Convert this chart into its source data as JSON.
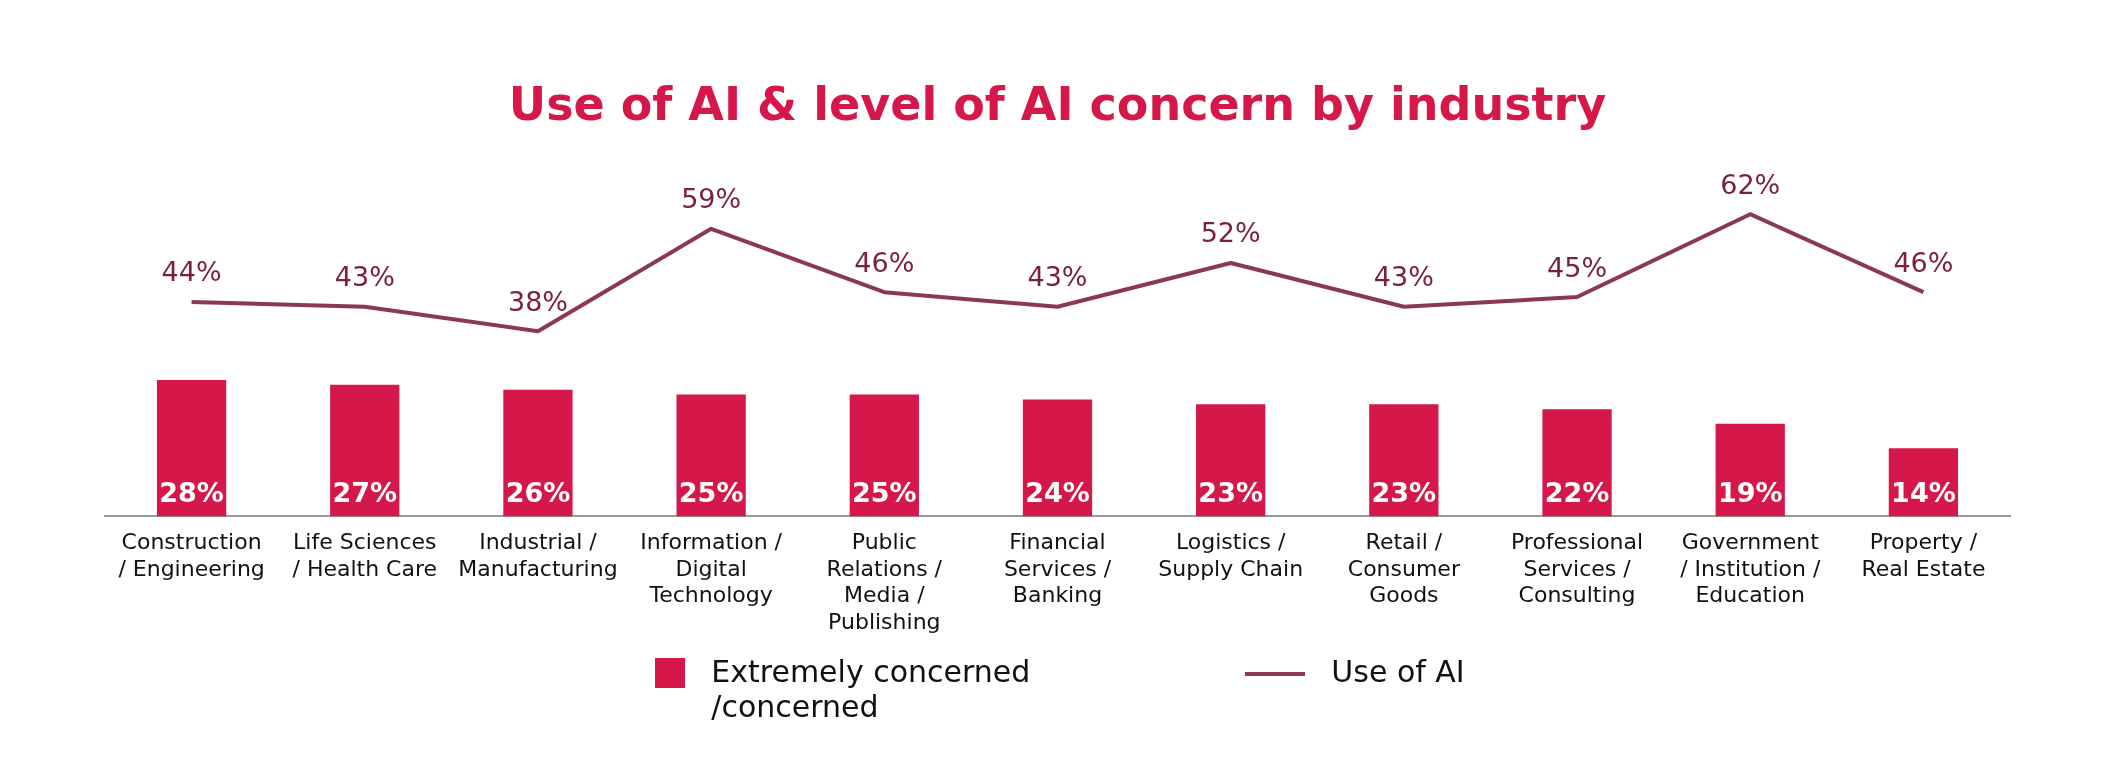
{
  "chart_data": {
    "type": "bar",
    "title": "Use of AI & level of AI concern by industry",
    "categories": [
      "Construction / Engineering",
      "Life Sciences / Health Care",
      "Industrial / Manufacturing",
      "Information / Digital Technology",
      "Public Relations / Media / Publishing",
      "Financial Services / Banking",
      "Logistics / Supply Chain",
      "Retail / Consumer Goods",
      "Professional Services / Consulting",
      "Government / Institution / Education",
      "Property / Real Estate"
    ],
    "series": [
      {
        "name": "Extremely concerned /concerned",
        "color": "#d6174a",
        "values": [
          28,
          27,
          26,
          25,
          25,
          24,
          23,
          23,
          22,
          19,
          14
        ],
        "value_labels": [
          "28%",
          "27%",
          "26%",
          "25%",
          "25%",
          "24%",
          "23%",
          "23%",
          "22%",
          "19%",
          "14%"
        ]
      },
      {
        "name": "Use of AI",
        "type": "line",
        "color": "#8b3a4e",
        "values": [
          44,
          43,
          38,
          59,
          46,
          43,
          52,
          43,
          45,
          62,
          46
        ],
        "value_labels": [
          "44%",
          "43%",
          "38%",
          "59%",
          "46%",
          "43%",
          "52%",
          "43%",
          "45%",
          "62%",
          "46%"
        ]
      }
    ],
    "tick_labels": "x",
    "legend": "bottom",
    "grid": false,
    "marker": "none"
  }
}
